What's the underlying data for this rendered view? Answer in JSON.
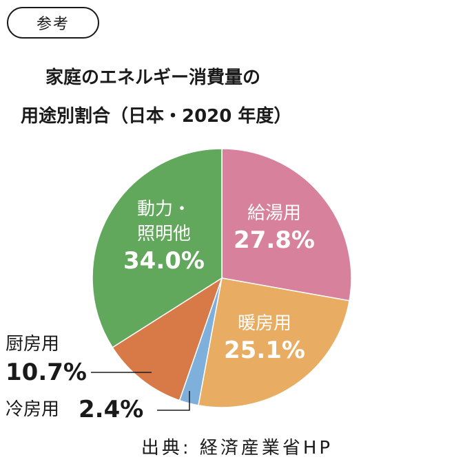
{
  "tag": "参考",
  "title": {
    "line1": "家庭のエネルギー消費量の",
    "line2": "用途別割合（日本・2020 年度）"
  },
  "source": "出典: 経済産業省HP",
  "colors": {
    "kyuto": "#d8819c",
    "danbo": "#e8ad63",
    "reibo": "#7fb0dc",
    "chubo": "#d87a48",
    "doryoku": "#62a85c"
  },
  "chart_data": {
    "type": "pie",
    "slices": [
      {
        "key": "kyuto",
        "name_lines": [
          "給湯用"
        ],
        "value_label": "27.8%",
        "value": 27.8
      },
      {
        "key": "danbo",
        "name_lines": [
          "暖房用"
        ],
        "value_label": "25.1%",
        "value": 25.1
      },
      {
        "key": "reibo",
        "name_lines": [
          "冷房用"
        ],
        "value_label": "2.4%",
        "value": 2.4
      },
      {
        "key": "chubo",
        "name_lines": [
          "厨房用"
        ],
        "value_label": "10.7%",
        "value": 10.7
      },
      {
        "key": "doryoku",
        "name_lines": [
          "動力・",
          "照明他"
        ],
        "value_label": "34.0%",
        "value": 34.0
      }
    ]
  }
}
